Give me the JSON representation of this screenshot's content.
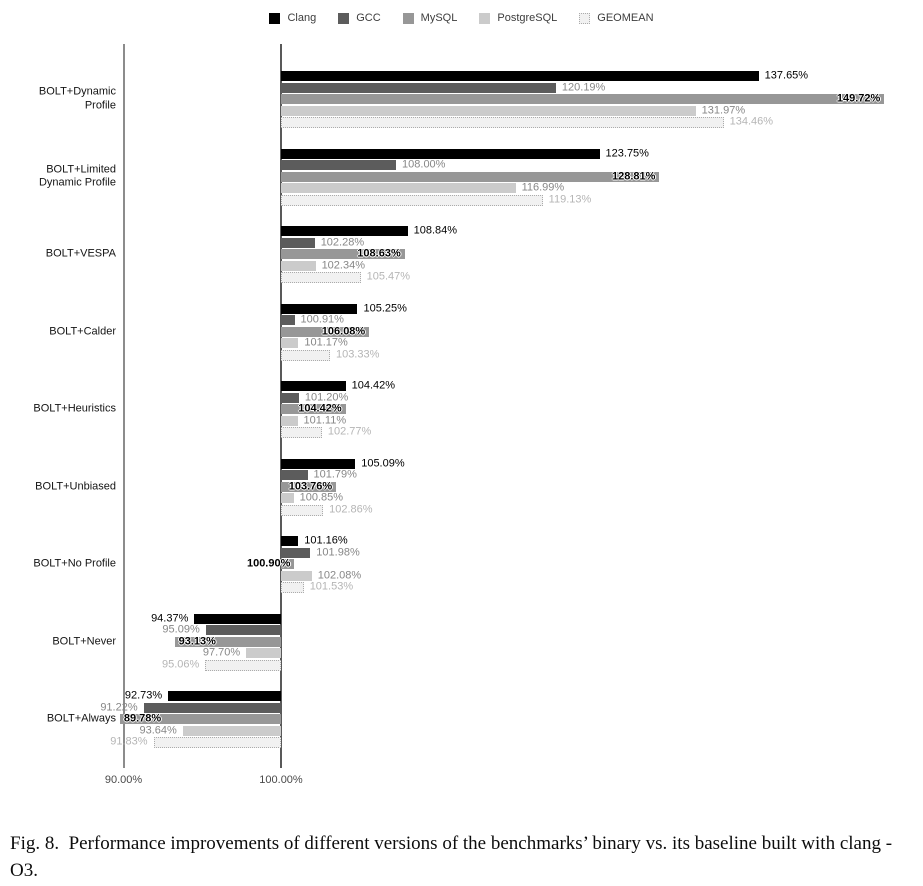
{
  "figure": {
    "caption": "Fig. 8.  Performance improvements of different versions of the benchmarks’ binary vs. its baseline built with clang -O3."
  },
  "chart_data": {
    "type": "bar",
    "orientation": "horizontal",
    "x_scale": "log",
    "baseline_value": 100,
    "grid": "vertical-lines-at-ticks",
    "legend_position": "top-center",
    "x_axis": {
      "ticks": [
        {
          "value": 90,
          "label": "90.00%"
        },
        {
          "value": 100,
          "label": "100.00%"
        }
      ],
      "range_shown": [
        88.5,
        152
      ]
    },
    "categories": [
      "BOLT+Dynamic\nProfile",
      "BOLT+Limited\nDynamic Profile",
      "BOLT+VESPA",
      "BOLT+Calder",
      "BOLT+Heuristics",
      "BOLT+Unbiased",
      "BOLT+No Profile",
      "BOLT+Never",
      "BOLT+Always"
    ],
    "series": [
      {
        "name": "Clang",
        "color": "#000000",
        "label_color": "#000000",
        "label_placement": "outside",
        "values": [
          137.65,
          123.75,
          108.84,
          105.25,
          104.42,
          105.09,
          101.16,
          94.37,
          92.73
        ]
      },
      {
        "name": "GCC",
        "color": "#5c5c5c",
        "label_color": "#878787",
        "label_placement": "outside",
        "values": [
          120.19,
          108.0,
          102.28,
          100.91,
          101.2,
          101.79,
          101.98,
          95.09,
          91.22
        ]
      },
      {
        "name": "MySQL",
        "color": "#979797",
        "label_color": "#000000",
        "label_placement": "inside",
        "label_bold": true,
        "values": [
          149.72,
          128.81,
          108.63,
          106.08,
          104.42,
          103.76,
          100.9,
          93.13,
          89.78
        ]
      },
      {
        "name": "PostgreSQL",
        "color": "#cbcbcb",
        "label_color": "#878787",
        "label_placement": "outside",
        "values": [
          131.97,
          116.99,
          102.34,
          101.17,
          101.11,
          100.85,
          102.08,
          97.7,
          93.64
        ]
      },
      {
        "name": "GEOMEAN",
        "color": "#f1f1f1",
        "border_style": "dotted",
        "border_color": "#ababab",
        "label_color": "#b5b5b5",
        "label_placement": "outside",
        "values": [
          134.46,
          119.13,
          105.47,
          103.33,
          102.77,
          102.86,
          101.53,
          95.06,
          91.83
        ]
      }
    ]
  }
}
